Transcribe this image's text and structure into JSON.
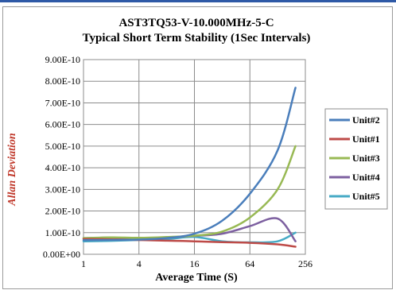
{
  "chart_data": {
    "type": "line",
    "title": "AST3TQ53-V-10.000MHz-5-C",
    "subtitle": "Typical Short Term Stability (1Sec Intervals)",
    "xlabel": "Average Time (S)",
    "ylabel": "Allan Deviation",
    "x_scale": "log2",
    "xlim": [
      1,
      256
    ],
    "ylim": [
      0,
      9e-10
    ],
    "x_ticks": [
      "1",
      "4",
      "16",
      "64",
      "256"
    ],
    "x_tick_values": [
      1,
      4,
      16,
      64,
      256
    ],
    "y_ticks": [
      "0.00E+00",
      "1.00E-10",
      "2.00E-10",
      "3.00E-10",
      "4.00E-10",
      "5.00E-10",
      "6.00E-10",
      "7.00E-10",
      "8.00E-10",
      "9.00E-10"
    ],
    "y_tick_values": [
      0,
      1e-10,
      2e-10,
      3e-10,
      4e-10,
      5e-10,
      6e-10,
      7e-10,
      8e-10,
      9e-10
    ],
    "grid": true,
    "legend_position": "right",
    "x": [
      1,
      2,
      4,
      8,
      16,
      32,
      64,
      128,
      200
    ],
    "series": [
      {
        "name": "Unit#2",
        "color": "#4a7ebb",
        "values": [
          6.5e-11,
          6.6e-11,
          6.8e-11,
          7.5e-11,
          9.5e-11,
          1.55e-10,
          2.8e-10,
          4.8e-10,
          7.7e-10
        ]
      },
      {
        "name": "Unit#1",
        "color": "#be4b48",
        "values": [
          7e-11,
          6.9e-11,
          6.6e-11,
          6.3e-11,
          6e-11,
          5.6e-11,
          5.3e-11,
          4.6e-11,
          3.5e-11
        ]
      },
      {
        "name": "Unit#3",
        "color": "#98b954",
        "values": [
          7.5e-11,
          7.8e-11,
          7.6e-11,
          8e-11,
          8.6e-11,
          1.05e-10,
          1.7e-10,
          3e-10,
          5e-10
        ]
      },
      {
        "name": "Unit#4",
        "color": "#7d60a0",
        "values": [
          7.5e-11,
          7.7e-11,
          7.2e-11,
          7.7e-11,
          8.5e-11,
          9.5e-11,
          1.3e-10,
          1.65e-10,
          6e-11
        ]
      },
      {
        "name": "Unit#5",
        "color": "#46aac5",
        "values": [
          6e-11,
          6.2e-11,
          6.6e-11,
          7e-11,
          8e-11,
          6e-11,
          5.5e-11,
          6e-11,
          1e-10
        ]
      }
    ]
  }
}
